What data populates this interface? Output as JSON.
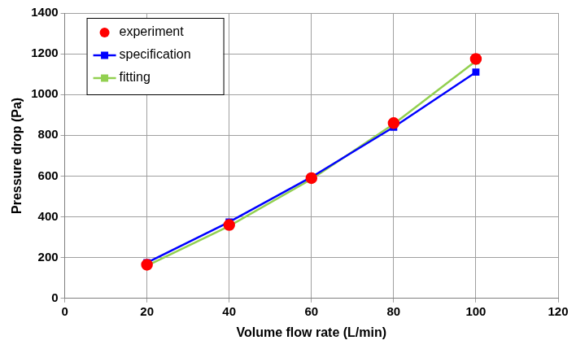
{
  "chart_data": {
    "type": "line",
    "x_label": "Volume flow rate (L/min)",
    "y_label": "Pressure drop (Pa)",
    "x": [
      20,
      40,
      60,
      80,
      100
    ],
    "series": [
      {
        "name": "experiment",
        "color": "#ff0000",
        "marker": "circle",
        "line_style": "none",
        "values": [
          165,
          360,
          590,
          860,
          1175
        ]
      },
      {
        "name": "specification",
        "color": "#0000ff",
        "marker": "square",
        "line_style": "solid",
        "values": [
          175,
          375,
          595,
          840,
          1110
        ]
      },
      {
        "name": "fitting",
        "color": "#92d050",
        "marker": "square",
        "line_style": "solid",
        "values": [
          160,
          355,
          585,
          855,
          1165
        ]
      }
    ],
    "xlim": [
      0,
      120
    ],
    "xticks": [
      0,
      20,
      40,
      60,
      80,
      100,
      120
    ],
    "ylim": [
      0,
      1400
    ],
    "yticks": [
      0,
      200,
      400,
      600,
      800,
      1000,
      1200,
      1400
    ],
    "grid": true,
    "legend": "upper left"
  }
}
